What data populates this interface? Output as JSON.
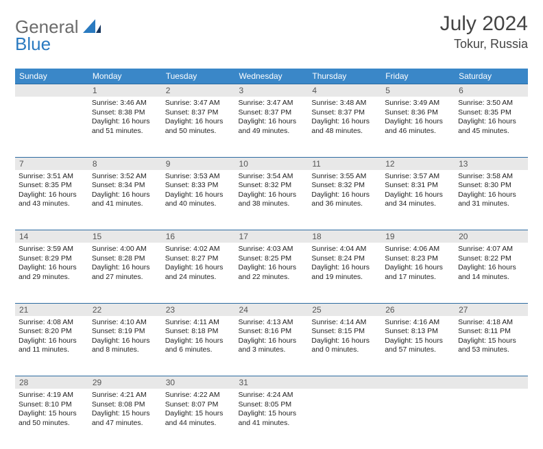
{
  "logo": {
    "part1": "General",
    "part2": "Blue"
  },
  "title": "July 2024",
  "location": "Tokur, Russia",
  "colors": {
    "header_bg": "#3a87c8",
    "header_text": "#ffffff",
    "daynum_bg": "#e8e8e8",
    "border": "#2a6aa0",
    "logo_gray": "#6b6b6b",
    "logo_blue": "#2a7ac0"
  },
  "day_headers": [
    "Sunday",
    "Monday",
    "Tuesday",
    "Wednesday",
    "Thursday",
    "Friday",
    "Saturday"
  ],
  "weeks": [
    {
      "nums": [
        "",
        "1",
        "2",
        "3",
        "4",
        "5",
        "6"
      ],
      "cells": [
        {
          "sunrise": "",
          "sunset": "",
          "daylight": ""
        },
        {
          "sunrise": "Sunrise: 3:46 AM",
          "sunset": "Sunset: 8:38 PM",
          "daylight": "Daylight: 16 hours and 51 minutes."
        },
        {
          "sunrise": "Sunrise: 3:47 AM",
          "sunset": "Sunset: 8:37 PM",
          "daylight": "Daylight: 16 hours and 50 minutes."
        },
        {
          "sunrise": "Sunrise: 3:47 AM",
          "sunset": "Sunset: 8:37 PM",
          "daylight": "Daylight: 16 hours and 49 minutes."
        },
        {
          "sunrise": "Sunrise: 3:48 AM",
          "sunset": "Sunset: 8:37 PM",
          "daylight": "Daylight: 16 hours and 48 minutes."
        },
        {
          "sunrise": "Sunrise: 3:49 AM",
          "sunset": "Sunset: 8:36 PM",
          "daylight": "Daylight: 16 hours and 46 minutes."
        },
        {
          "sunrise": "Sunrise: 3:50 AM",
          "sunset": "Sunset: 8:35 PM",
          "daylight": "Daylight: 16 hours and 45 minutes."
        }
      ]
    },
    {
      "nums": [
        "7",
        "8",
        "9",
        "10",
        "11",
        "12",
        "13"
      ],
      "cells": [
        {
          "sunrise": "Sunrise: 3:51 AM",
          "sunset": "Sunset: 8:35 PM",
          "daylight": "Daylight: 16 hours and 43 minutes."
        },
        {
          "sunrise": "Sunrise: 3:52 AM",
          "sunset": "Sunset: 8:34 PM",
          "daylight": "Daylight: 16 hours and 41 minutes."
        },
        {
          "sunrise": "Sunrise: 3:53 AM",
          "sunset": "Sunset: 8:33 PM",
          "daylight": "Daylight: 16 hours and 40 minutes."
        },
        {
          "sunrise": "Sunrise: 3:54 AM",
          "sunset": "Sunset: 8:32 PM",
          "daylight": "Daylight: 16 hours and 38 minutes."
        },
        {
          "sunrise": "Sunrise: 3:55 AM",
          "sunset": "Sunset: 8:32 PM",
          "daylight": "Daylight: 16 hours and 36 minutes."
        },
        {
          "sunrise": "Sunrise: 3:57 AM",
          "sunset": "Sunset: 8:31 PM",
          "daylight": "Daylight: 16 hours and 34 minutes."
        },
        {
          "sunrise": "Sunrise: 3:58 AM",
          "sunset": "Sunset: 8:30 PM",
          "daylight": "Daylight: 16 hours and 31 minutes."
        }
      ]
    },
    {
      "nums": [
        "14",
        "15",
        "16",
        "17",
        "18",
        "19",
        "20"
      ],
      "cells": [
        {
          "sunrise": "Sunrise: 3:59 AM",
          "sunset": "Sunset: 8:29 PM",
          "daylight": "Daylight: 16 hours and 29 minutes."
        },
        {
          "sunrise": "Sunrise: 4:00 AM",
          "sunset": "Sunset: 8:28 PM",
          "daylight": "Daylight: 16 hours and 27 minutes."
        },
        {
          "sunrise": "Sunrise: 4:02 AM",
          "sunset": "Sunset: 8:27 PM",
          "daylight": "Daylight: 16 hours and 24 minutes."
        },
        {
          "sunrise": "Sunrise: 4:03 AM",
          "sunset": "Sunset: 8:25 PM",
          "daylight": "Daylight: 16 hours and 22 minutes."
        },
        {
          "sunrise": "Sunrise: 4:04 AM",
          "sunset": "Sunset: 8:24 PM",
          "daylight": "Daylight: 16 hours and 19 minutes."
        },
        {
          "sunrise": "Sunrise: 4:06 AM",
          "sunset": "Sunset: 8:23 PM",
          "daylight": "Daylight: 16 hours and 17 minutes."
        },
        {
          "sunrise": "Sunrise: 4:07 AM",
          "sunset": "Sunset: 8:22 PM",
          "daylight": "Daylight: 16 hours and 14 minutes."
        }
      ]
    },
    {
      "nums": [
        "21",
        "22",
        "23",
        "24",
        "25",
        "26",
        "27"
      ],
      "cells": [
        {
          "sunrise": "Sunrise: 4:08 AM",
          "sunset": "Sunset: 8:20 PM",
          "daylight": "Daylight: 16 hours and 11 minutes."
        },
        {
          "sunrise": "Sunrise: 4:10 AM",
          "sunset": "Sunset: 8:19 PM",
          "daylight": "Daylight: 16 hours and 8 minutes."
        },
        {
          "sunrise": "Sunrise: 4:11 AM",
          "sunset": "Sunset: 8:18 PM",
          "daylight": "Daylight: 16 hours and 6 minutes."
        },
        {
          "sunrise": "Sunrise: 4:13 AM",
          "sunset": "Sunset: 8:16 PM",
          "daylight": "Daylight: 16 hours and 3 minutes."
        },
        {
          "sunrise": "Sunrise: 4:14 AM",
          "sunset": "Sunset: 8:15 PM",
          "daylight": "Daylight: 16 hours and 0 minutes."
        },
        {
          "sunrise": "Sunrise: 4:16 AM",
          "sunset": "Sunset: 8:13 PM",
          "daylight": "Daylight: 15 hours and 57 minutes."
        },
        {
          "sunrise": "Sunrise: 4:18 AM",
          "sunset": "Sunset: 8:11 PM",
          "daylight": "Daylight: 15 hours and 53 minutes."
        }
      ]
    },
    {
      "nums": [
        "28",
        "29",
        "30",
        "31",
        "",
        "",
        ""
      ],
      "cells": [
        {
          "sunrise": "Sunrise: 4:19 AM",
          "sunset": "Sunset: 8:10 PM",
          "daylight": "Daylight: 15 hours and 50 minutes."
        },
        {
          "sunrise": "Sunrise: 4:21 AM",
          "sunset": "Sunset: 8:08 PM",
          "daylight": "Daylight: 15 hours and 47 minutes."
        },
        {
          "sunrise": "Sunrise: 4:22 AM",
          "sunset": "Sunset: 8:07 PM",
          "daylight": "Daylight: 15 hours and 44 minutes."
        },
        {
          "sunrise": "Sunrise: 4:24 AM",
          "sunset": "Sunset: 8:05 PM",
          "daylight": "Daylight: 15 hours and 41 minutes."
        },
        {
          "sunrise": "",
          "sunset": "",
          "daylight": ""
        },
        {
          "sunrise": "",
          "sunset": "",
          "daylight": ""
        },
        {
          "sunrise": "",
          "sunset": "",
          "daylight": ""
        }
      ]
    }
  ]
}
